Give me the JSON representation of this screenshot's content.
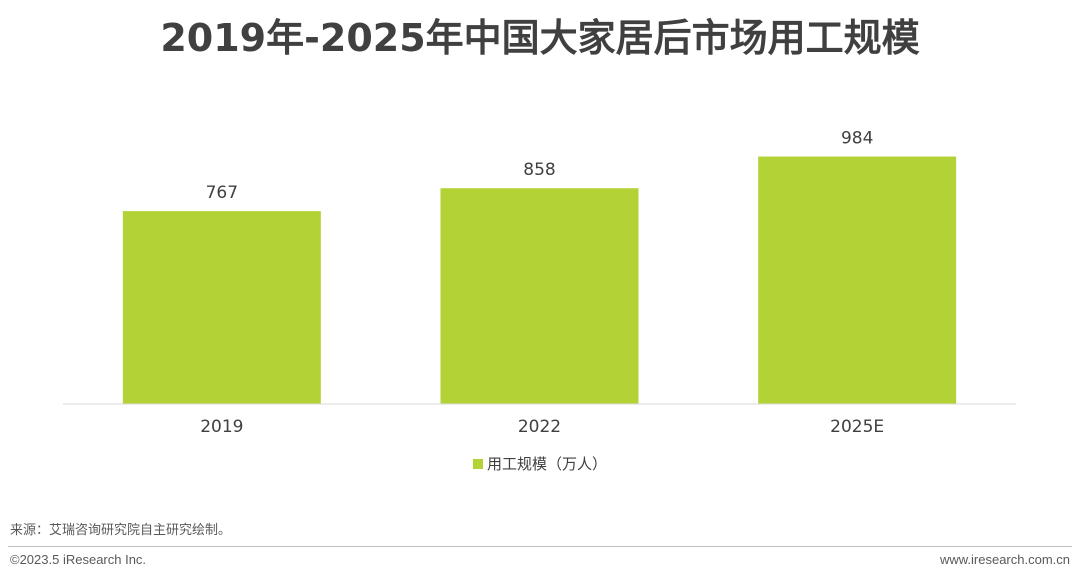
{
  "chart_data": {
    "type": "bar",
    "title": "2019年-2025年中国大家居后市场用工规模",
    "categories": [
      "2019",
      "2022",
      "2025E"
    ],
    "series": [
      {
        "name": "用工规模（万人）",
        "values": [
          767,
          858,
          984
        ],
        "color": "#b2d235"
      }
    ],
    "ylim": [
      0,
      1010
    ],
    "grid": false,
    "legend_position": "bottom-center",
    "data_labels": true
  },
  "footer": {
    "source": "来源：艾瑞咨询研究院自主研究绘制。",
    "copyright": "©2023.5 iResearch Inc.",
    "website": "www.iresearch.com.cn"
  },
  "colors": {
    "bar": "#b2d235",
    "axis": "#d9d9d9",
    "text": "#404040"
  }
}
